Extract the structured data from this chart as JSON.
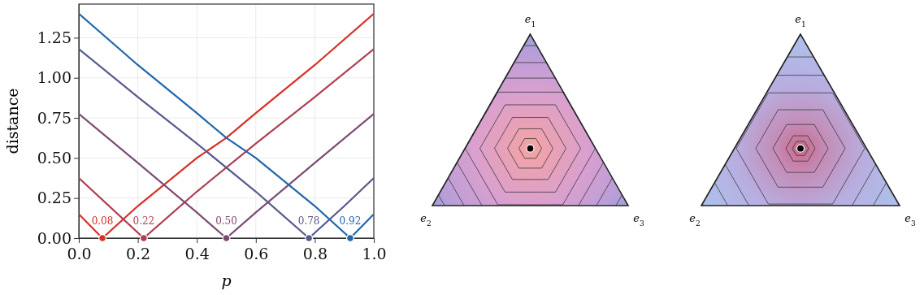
{
  "chart_data": [
    {
      "type": "line",
      "xlabel": "p",
      "ylabel": "distance",
      "xlim": [
        0,
        1
      ],
      "ylim": [
        0,
        1.46
      ],
      "xticks": [
        {
          "value": 0,
          "label": "0.0"
        },
        {
          "value": 0.2,
          "label": "0.2"
        },
        {
          "value": 0.4,
          "label": "0.4"
        },
        {
          "value": 0.6,
          "label": "0.6"
        },
        {
          "value": 0.8,
          "label": "0.8"
        },
        {
          "value": 1,
          "label": "1.0"
        }
      ],
      "yticks": [
        {
          "value": 0,
          "label": "0.00"
        },
        {
          "value": 0.25,
          "label": "0.25"
        },
        {
          "value": 0.5,
          "label": "0.50"
        },
        {
          "value": 0.75,
          "label": "0.75"
        },
        {
          "value": 1,
          "label": "1.00"
        },
        {
          "value": 1.25,
          "label": "1.25"
        }
      ],
      "grid": true,
      "line_style": "solid",
      "series": [
        {
          "color": "#d73027",
          "x": [
            0,
            0.08,
            0.2,
            0.4,
            0.5,
            0.6,
            0.8,
            1
          ],
          "values": [
            0.15,
            0,
            0.2,
            0.5,
            0.625,
            0.78,
            1.08,
            1.4
          ]
        },
        {
          "color": "#b03e52",
          "x": [
            0,
            0.22,
            0.4,
            0.6,
            0.8,
            1
          ],
          "values": [
            0.375,
            0,
            0.29,
            0.59,
            0.88,
            1.18
          ]
        },
        {
          "color": "#7c4b74",
          "x": [
            0,
            0.2,
            0.4,
            0.5,
            0.6,
            0.8,
            1
          ],
          "values": [
            0.775,
            0.47,
            0.16,
            0,
            0.16,
            0.47,
            0.775
          ]
        },
        {
          "color": "#575a8e",
          "x": [
            0,
            0.2,
            0.4,
            0.6,
            0.78,
            0.9,
            1
          ],
          "values": [
            1.18,
            0.88,
            0.59,
            0.29,
            0,
            0.2,
            0.375
          ]
        },
        {
          "color": "#2166ac",
          "x": [
            0,
            0.2,
            0.4,
            0.5,
            0.6,
            0.8,
            0.92,
            1
          ],
          "values": [
            1.4,
            1.08,
            0.78,
            0.625,
            0.5,
            0.2,
            0,
            0.15
          ]
        },
        {
          "type": "scatter",
          "marker": "circle",
          "x": [
            0.08,
            0.22,
            0.5,
            0.78,
            0.92
          ],
          "values": [
            0,
            0,
            0,
            0,
            0
          ],
          "colors": [
            "#d73027",
            "#b03e52",
            "#7c4b74",
            "#575a8e",
            "#2166ac"
          ]
        }
      ],
      "annotations": [
        {
          "text": "0.08",
          "x": 0.08,
          "y": 0
        },
        {
          "text": "0.22",
          "x": 0.22,
          "y": 0
        },
        {
          "text": "0.50",
          "x": 0.5,
          "y": 0
        },
        {
          "text": "0.78",
          "x": 0.78,
          "y": 0
        },
        {
          "text": "0.92",
          "x": 0.92,
          "y": 0
        }
      ]
    },
    {
      "type": "other",
      "annotations": [
        "e$_{1}$",
        "e$_{2}$",
        "e$_{3}$"
      ]
    },
    {
      "type": "other",
      "annotations": [
        "e$_{1}$",
        "e$_{2}$",
        "e$_{3}$"
      ]
    }
  ]
}
